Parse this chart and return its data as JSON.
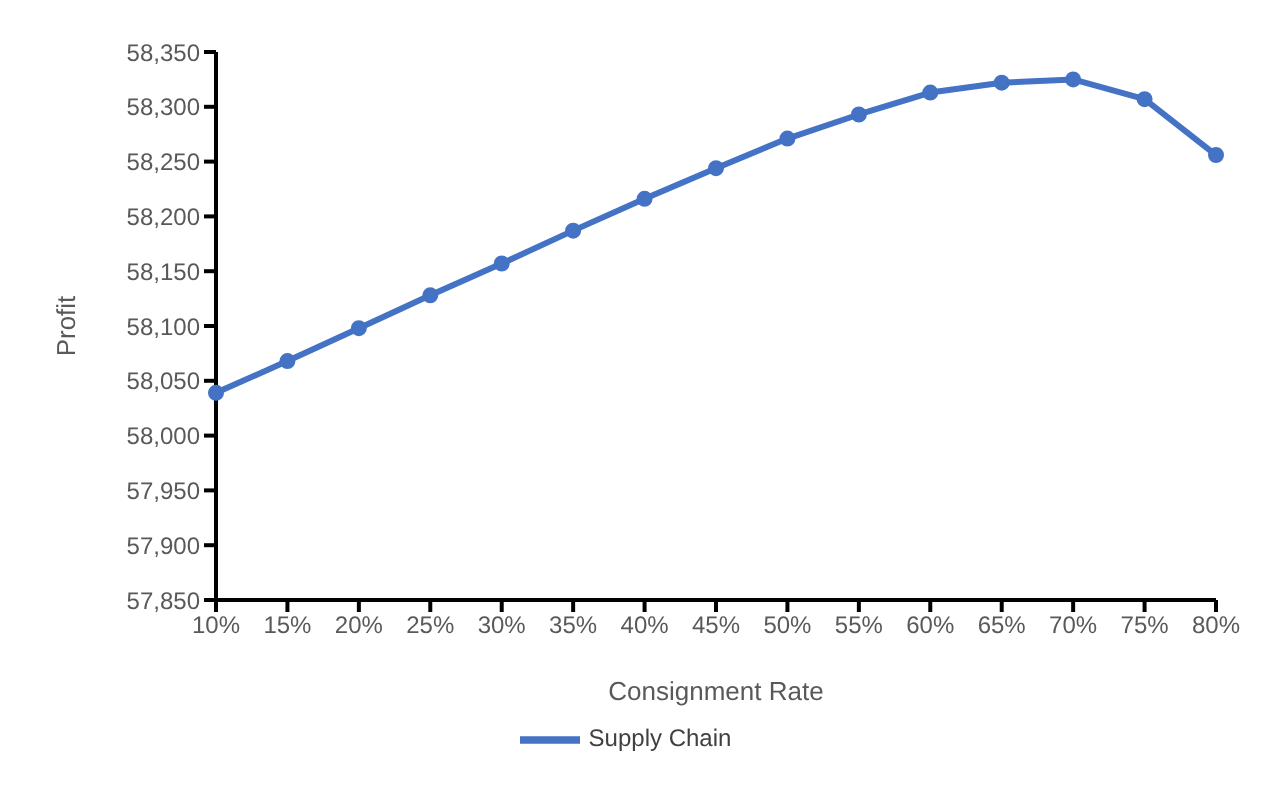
{
  "chart_data": {
    "type": "line",
    "xlabel": "Consignment Rate",
    "ylabel": "Profit",
    "categories": [
      "10%",
      "15%",
      "20%",
      "25%",
      "30%",
      "35%",
      "40%",
      "45%",
      "50%",
      "55%",
      "60%",
      "65%",
      "70%",
      "75%",
      "80%"
    ],
    "series": [
      {
        "name": "Supply Chain",
        "color": "#4472c4",
        "values": [
          58039,
          58068,
          58098,
          58128,
          58157,
          58187,
          58216,
          58244,
          58271,
          58293,
          58313,
          58322,
          58325,
          58307,
          58256
        ]
      }
    ],
    "ylim": [
      57850,
      58350
    ],
    "yticks": [
      {
        "value": 57850,
        "label": "57,850"
      },
      {
        "value": 57900,
        "label": "57,900"
      },
      {
        "value": 57950,
        "label": "57,950"
      },
      {
        "value": 58000,
        "label": "58,000"
      },
      {
        "value": 58050,
        "label": "58,050"
      },
      {
        "value": 58100,
        "label": "58,100"
      },
      {
        "value": 58150,
        "label": "58,150"
      },
      {
        "value": 58200,
        "label": "58,200"
      },
      {
        "value": 58250,
        "label": "58,250"
      },
      {
        "value": 58300,
        "label": "58,300"
      },
      {
        "value": 58350,
        "label": "58,350"
      }
    ],
    "grid": false,
    "legend": "bottom",
    "marker": "circle",
    "line_style": "solid"
  }
}
